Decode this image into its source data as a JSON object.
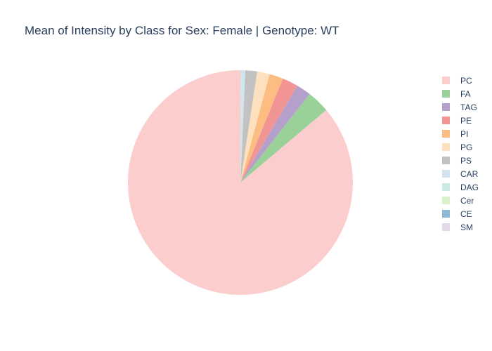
{
  "chart_data": {
    "type": "pie",
    "title": "Mean of Intensity by Class for Sex: Female | Genotype: WT",
    "slices": [
      {
        "label": "PC",
        "value": 86.6,
        "color": "#fccdcd"
      },
      {
        "label": "FA",
        "value": 3.3,
        "color": "#99d199"
      },
      {
        "label": "TAG",
        "value": 2.1,
        "color": "#b59fcb"
      },
      {
        "label": "PE",
        "value": 2.3,
        "color": "#f09494"
      },
      {
        "label": "PI",
        "value": 2.0,
        "color": "#fdbd82"
      },
      {
        "label": "PG",
        "value": 1.8,
        "color": "#fde0bd"
      },
      {
        "label": "PS",
        "value": 1.7,
        "color": "#c2c2c2"
      },
      {
        "label": "CAR",
        "value": 0.5,
        "color": "#d2e4ef"
      },
      {
        "label": "DAG",
        "value": 0.1,
        "color": "#cceae3"
      },
      {
        "label": "Cer",
        "value": 0.05,
        "color": "#daf0cc"
      },
      {
        "label": "CE",
        "value": 0.03,
        "color": "#8bb9d6"
      },
      {
        "label": "SM",
        "value": 0.02,
        "color": "#e2d9ea"
      }
    ],
    "direction": "counterclockwise",
    "start_angle": "12 o'clock",
    "legend_position": "right"
  }
}
